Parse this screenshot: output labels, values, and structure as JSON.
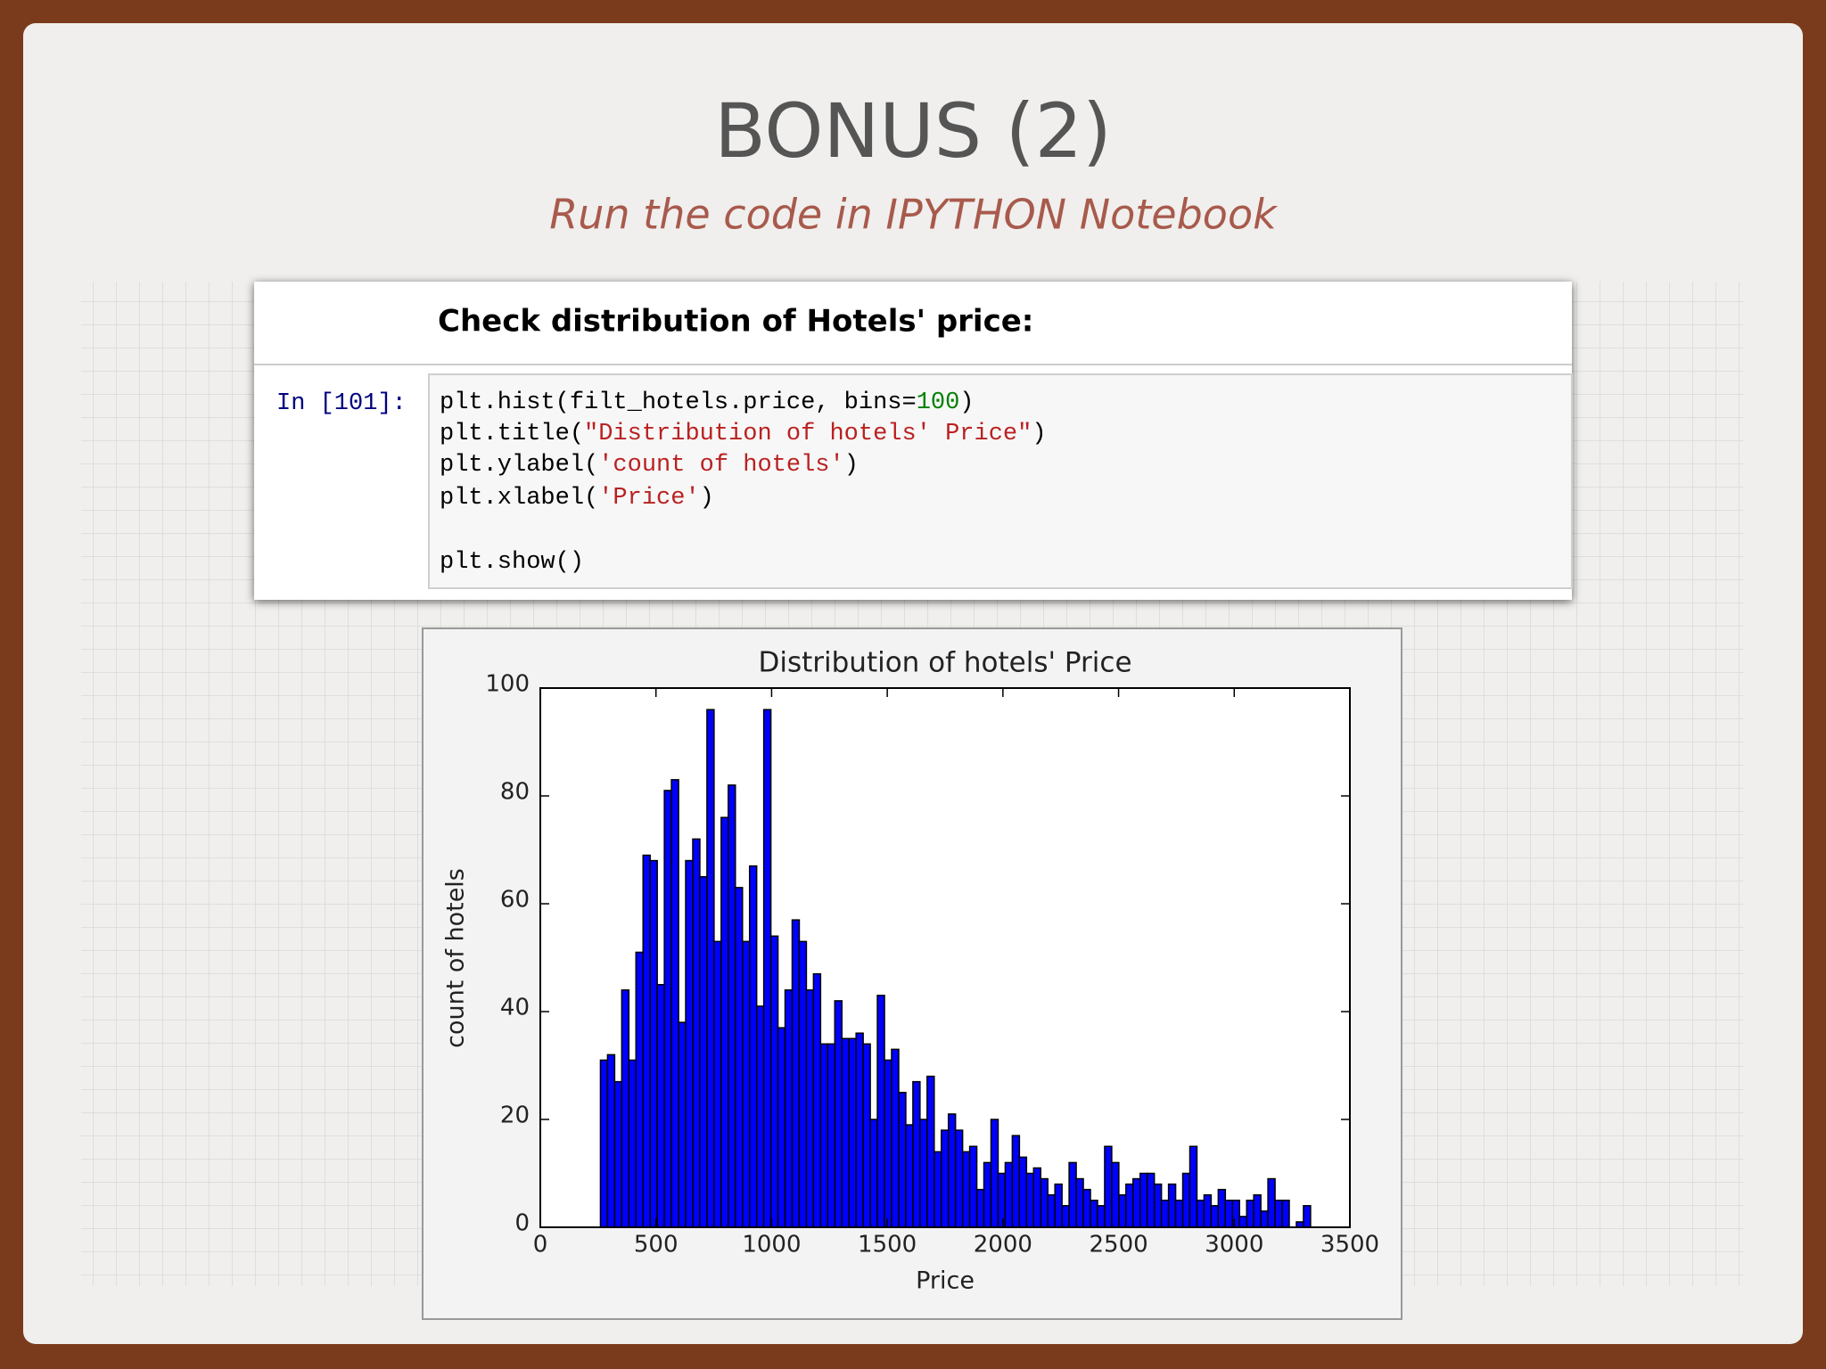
{
  "slide": {
    "title": "BONUS (2)",
    "subtitle": "Run the code in IPYTHON Notebook"
  },
  "notebook": {
    "heading": "Check distribution of Hotels' price:",
    "prompt": "In [101]:",
    "code": [
      [
        "plt.hist(filt_hotels.price, bins=",
        "100",
        ")"
      ],
      [
        "plt.title(",
        "\"Distribution of hotels' Price\"",
        ")"
      ],
      [
        "plt.ylabel(",
        "'count of hotels'",
        ")"
      ],
      [
        "plt.xlabel(",
        "'Price'",
        ")"
      ],
      [],
      [
        "plt.show()"
      ]
    ]
  },
  "chart_data": {
    "type": "histogram",
    "title": "Distribution of hotels' Price",
    "xlabel": "Price",
    "ylabel": "count of hotels",
    "bins": [
      260.0,
      290.7,
      321.4,
      352.1,
      382.8,
      413.5,
      444.2,
      474.9,
      505.6,
      536.3,
      567.0,
      597.7,
      628.4,
      659.1,
      689.8,
      720.5,
      751.2,
      781.9,
      812.6,
      843.3,
      874.0,
      904.7,
      935.4,
      966.1,
      996.8,
      1027.5,
      1058.2,
      1088.9,
      1119.6,
      1150.3,
      1181.0,
      1211.7,
      1242.4,
      1273.1,
      1303.8,
      1334.5,
      1365.2,
      1395.9,
      1426.6,
      1457.3,
      1488.0,
      1518.7,
      1549.4,
      1580.1,
      1610.8,
      1641.5,
      1672.2,
      1702.9,
      1733.6,
      1764.3,
      1795.0,
      1825.7,
      1856.4,
      1887.1,
      1917.8,
      1948.5,
      1979.2,
      2009.9,
      2040.6,
      2071.3,
      2102.0,
      2132.7,
      2163.4,
      2194.1,
      2224.8,
      2255.5,
      2286.2,
      2316.9,
      2347.6,
      2378.3,
      2409.0,
      2439.7,
      2470.4,
      2501.1,
      2531.8,
      2562.5,
      2593.2,
      2623.9,
      2654.6,
      2685.3,
      2716.0,
      2746.7,
      2777.4,
      2808.1,
      2838.8,
      2869.5,
      2900.2,
      2930.9,
      2961.6,
      2992.3,
      3023.0,
      3053.7,
      3084.4,
      3115.1,
      3145.8,
      3176.5,
      3207.2,
      3237.9,
      3268.6,
      3299.3,
      3330.0
    ],
    "counts": [
      31,
      32,
      27,
      44,
      31,
      51,
      69,
      68,
      45,
      81,
      83,
      38,
      68,
      72,
      65,
      96,
      53,
      76,
      82,
      63,
      53,
      67,
      41,
      96,
      54,
      37,
      44,
      57,
      53,
      44,
      47,
      34,
      34,
      42,
      35,
      35,
      36,
      34,
      20,
      43,
      31,
      33,
      25,
      19,
      27,
      20,
      28,
      14,
      18,
      21,
      18,
      14,
      15,
      7,
      12,
      20,
      10,
      12,
      17,
      13,
      10,
      11,
      9,
      6,
      8,
      4,
      12,
      9,
      7,
      5,
      4,
      15,
      12,
      6,
      8,
      9,
      10,
      10,
      8,
      5,
      8,
      5,
      10,
      15,
      5,
      6,
      4,
      7,
      5,
      5,
      2,
      5,
      6,
      3,
      9,
      5,
      5,
      0,
      1,
      4
    ],
    "color": "#0000ff",
    "xlim": [
      0,
      3500
    ],
    "xticks": [
      0,
      500,
      1000,
      1500,
      2000,
      2500,
      3000,
      3500
    ],
    "ylim": [
      0,
      100
    ],
    "yticks": [
      0,
      20,
      40,
      60,
      80,
      100
    ]
  }
}
